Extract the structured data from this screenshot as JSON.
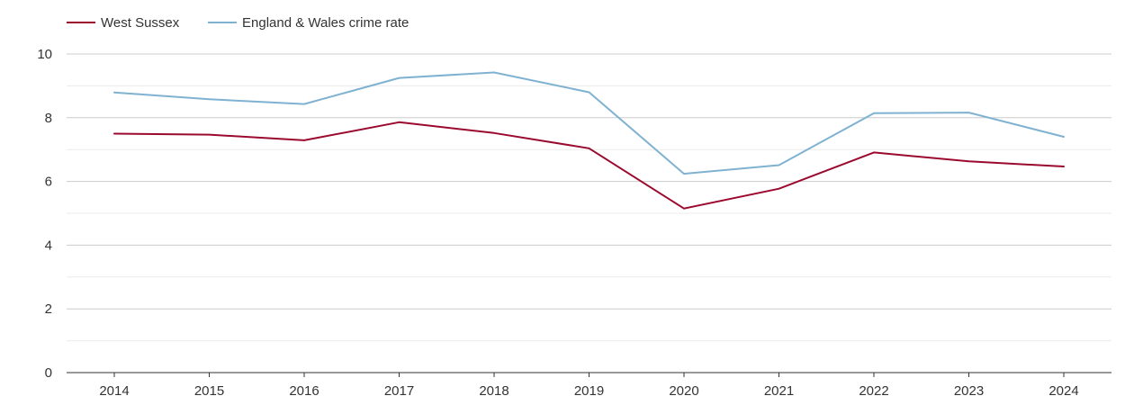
{
  "chart_data": {
    "type": "line",
    "title": "",
    "xlabel": "",
    "ylabel": "",
    "x": [
      "2014",
      "2015",
      "2016",
      "2017",
      "2018",
      "2019",
      "2020",
      "2021",
      "2022",
      "2023",
      "2024"
    ],
    "ylim": [
      0,
      10
    ],
    "y_ticks": [
      "0",
      "2",
      "4",
      "6",
      "8",
      "10"
    ],
    "grid": true,
    "legend_position": "top-left",
    "series": [
      {
        "name": "West Sussex",
        "color": "#9b0a2e",
        "values": [
          7.5,
          7.47,
          7.29,
          7.86,
          7.52,
          7.04,
          5.15,
          5.77,
          6.91,
          6.63,
          6.47
        ]
      },
      {
        "name": "England & Wales crime rate",
        "color": "#7fb2d1",
        "values": [
          8.79,
          8.58,
          8.43,
          9.25,
          9.42,
          8.8,
          6.24,
          6.51,
          8.14,
          8.16,
          7.4
        ]
      }
    ]
  }
}
